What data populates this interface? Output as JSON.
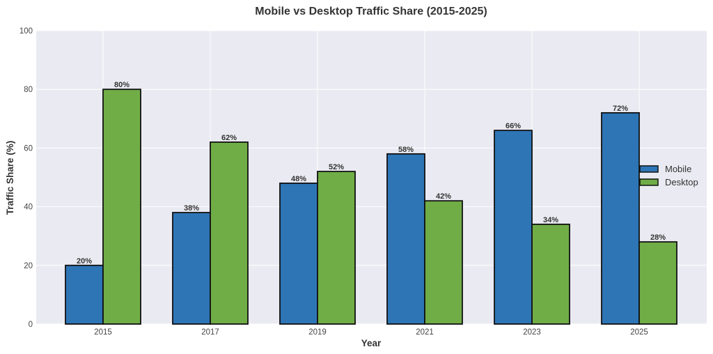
{
  "chart_data": {
    "type": "bar",
    "title": "Mobile vs Desktop Traffic Share (2015-2025)",
    "xlabel": "Year",
    "ylabel": "Traffic Share (%)",
    "categories": [
      "2015",
      "2017",
      "2019",
      "2021",
      "2023",
      "2025"
    ],
    "series": [
      {
        "name": "Mobile",
        "color": "#2e75b6",
        "values": [
          20,
          38,
          48,
          58,
          66,
          72
        ]
      },
      {
        "name": "Desktop",
        "color": "#70ad47",
        "values": [
          80,
          62,
          52,
          42,
          34,
          28
        ]
      }
    ],
    "value_label_suffix": "%",
    "ylim": [
      0,
      100
    ],
    "yticks": [
      0,
      20,
      40,
      60,
      80,
      100
    ],
    "grid": true,
    "legend_position": "center-right",
    "background_color": "#eaeaf2",
    "grid_color": "#ffffff",
    "edge_color": "#111111"
  }
}
